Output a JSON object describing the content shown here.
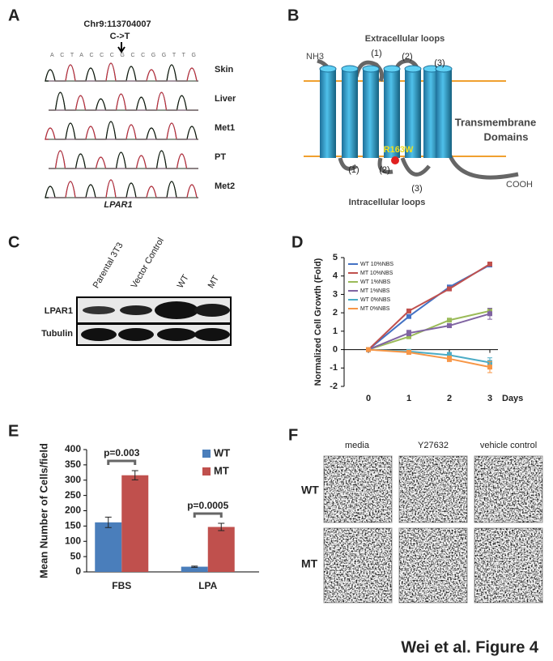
{
  "panel_a": {
    "label": "A",
    "position": "Chr9:113704007",
    "change": "C->T",
    "sequence": "ACTACCCGCCGGTTG",
    "rows": [
      "Skin",
      "Liver",
      "Met1",
      "PT",
      "Met2"
    ],
    "gene": "LPAR1"
  },
  "panel_b": {
    "label": "B",
    "extracellular": "Extracellular loops",
    "n_term": "NH3",
    "top_loops": [
      "(1)",
      "(2)",
      "(3)"
    ],
    "domains": [
      "Transmembrane",
      "Domains"
    ],
    "mutation": "R163W",
    "bottom_loops": [
      "(1)",
      "(2)",
      "(3)"
    ],
    "intracellular": "Intracellular loops",
    "c_term": "COOH"
  },
  "panel_c": {
    "label": "C",
    "lanes": [
      "Parental 3T3",
      "Vector Control",
      "WT",
      "MT"
    ],
    "rows": [
      "LPAR1",
      "Tubulin"
    ]
  },
  "panel_d": {
    "label": "D"
  },
  "panel_e": {
    "label": "E"
  },
  "panel_f": {
    "label": "F",
    "columns": [
      "media",
      "Y27632",
      "vehicle control"
    ],
    "rows": [
      "WT",
      "MT"
    ]
  },
  "caption": "Wei et al. Figure 4",
  "chart_data": [
    {
      "type": "line",
      "x": [
        0,
        1,
        2,
        3
      ],
      "xlim": [
        -0.6,
        3.2
      ],
      "xticks": [
        0,
        1,
        2,
        3
      ],
      "xlabel": "Days",
      "ylabel": "Normalized Cell Growth (Fold)",
      "ylim": [
        -2,
        5
      ],
      "yticks": [
        -2,
        -1,
        0,
        1,
        2,
        3,
        4,
        5
      ],
      "legend": "upper left",
      "series": [
        {
          "name": "WT 10%NBS",
          "color": "#4472c4",
          "values": [
            0,
            1.8,
            3.4,
            4.6
          ],
          "errors": [
            0,
            0.1,
            0.1,
            0.1
          ]
        },
        {
          "name": "MT 10%NBS",
          "color": "#c0504d",
          "values": [
            0,
            2.1,
            3.3,
            4.65
          ],
          "errors": [
            0,
            0.1,
            0.1,
            0.1
          ]
        },
        {
          "name": "WT 1%NBS",
          "color": "#9bbb59",
          "values": [
            0,
            0.7,
            1.6,
            2.1
          ],
          "errors": [
            0,
            0.1,
            0.1,
            0.15
          ]
        },
        {
          "name": "MT 1%NBS",
          "color": "#8064a2",
          "values": [
            0,
            0.9,
            1.3,
            1.95
          ],
          "errors": [
            0,
            0.15,
            0.1,
            0.3
          ]
        },
        {
          "name": "WT 0%NBS",
          "color": "#4bacc6",
          "values": [
            0,
            -0.1,
            -0.3,
            -0.7
          ],
          "errors": [
            0,
            0.1,
            0.15,
            0.25
          ]
        },
        {
          "name": "MT 0%NBS",
          "color": "#f79646",
          "values": [
            0,
            -0.15,
            -0.5,
            -0.95
          ],
          "errors": [
            0,
            0.1,
            0.15,
            0.3
          ]
        }
      ]
    },
    {
      "type": "bar",
      "categories": [
        "FBS",
        "LPA"
      ],
      "ylabel": "Mean Number of Cells/field",
      "ylim": [
        0,
        400
      ],
      "yticks": [
        0,
        50,
        100,
        150,
        200,
        250,
        300,
        350,
        400
      ],
      "legend": "upper right",
      "series": [
        {
          "name": "WT",
          "color": "#4a7ebb",
          "values": [
            162,
            17
          ],
          "errors": [
            17,
            2
          ]
        },
        {
          "name": "MT",
          "color": "#c0504d",
          "values": [
            316,
            147
          ],
          "errors": [
            15,
            12
          ]
        }
      ],
      "annotations": [
        "p=0.003",
        "p=0.0005"
      ]
    }
  ]
}
